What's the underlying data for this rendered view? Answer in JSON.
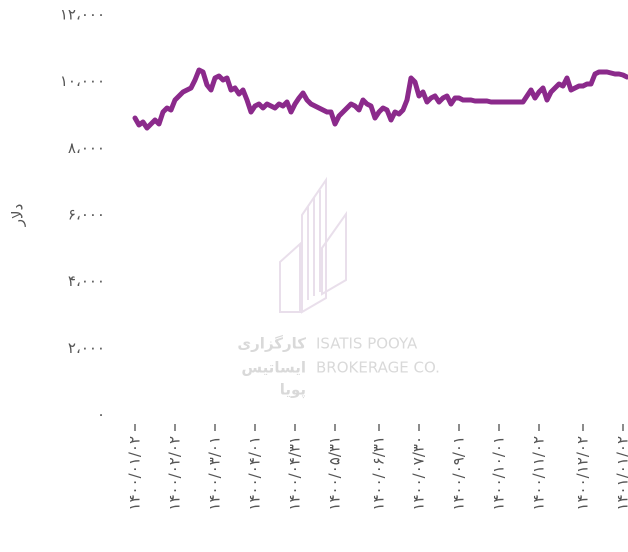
{
  "chart_data": {
    "type": "line",
    "ylabel": "دلار",
    "watermark": [
      "کارگزاری",
      "ایساتیس",
      "پویا",
      "ISATIS POOYA",
      "BROKERAGE CO."
    ],
    "ylim": [
      0,
      12000
    ],
    "yticks": [
      {
        "value": 0,
        "label": "۰"
      },
      {
        "value": 2000,
        "label": "۲،۰۰۰"
      },
      {
        "value": 4000,
        "label": "۴،۰۰۰"
      },
      {
        "value": 6000,
        "label": "۶،۰۰۰"
      },
      {
        "value": 8000,
        "label": "۸،۰۰۰"
      },
      {
        "value": 10000,
        "label": "۱۰،۰۰۰"
      },
      {
        "value": 12000,
        "label": "۱۲،۰۰۰"
      }
    ],
    "categories": [
      "۱۴۰۰/۰۱/۰۲",
      null,
      null,
      null,
      null,
      null,
      null,
      null,
      null,
      null,
      "۱۴۰۰/۰۲/۰۲",
      null,
      null,
      null,
      null,
      null,
      null,
      null,
      null,
      null,
      "۱۴۰۰/۰۳/۰۱",
      null,
      null,
      null,
      null,
      null,
      null,
      null,
      null,
      null,
      "۱۴۰۰/۰۴/۰۱",
      null,
      null,
      null,
      null,
      null,
      null,
      null,
      null,
      null,
      "۱۴۰۰/۰۴/۳۱",
      null,
      null,
      null,
      null,
      null,
      null,
      null,
      null,
      null,
      "۱۴۰۰/۰۵/۳۱",
      null,
      null,
      null,
      null,
      null,
      null,
      null,
      null,
      null,
      null,
      "۱۴۰۰/۰۶/۳۱",
      null,
      null,
      null,
      null,
      null,
      null,
      null,
      null,
      null,
      "۱۴۰۰/۰۷/۳۰",
      null,
      null,
      null,
      null,
      null,
      null,
      null,
      null,
      null,
      "۱۴۰۰/۰۹/۰۱",
      null,
      null,
      null,
      null,
      null,
      null,
      null,
      null,
      null,
      "۱۴۰۰/۱۰/۰۱",
      null,
      null,
      null,
      null,
      null,
      null,
      null,
      null,
      null,
      "۱۴۰۰/۱۱/۰۲",
      null,
      null,
      null,
      null,
      null,
      null,
      null,
      null,
      null,
      null,
      "۱۴۰۰/۱۲/۰۲",
      null,
      null,
      null,
      null,
      null,
      null,
      null,
      null,
      null,
      "۱۴۰۱/۰۱/۰۲",
      null
    ],
    "series": [
      {
        "color": "#8b2a8b",
        "values": [
          8910,
          8700,
          8790,
          8610,
          8730,
          8850,
          8730,
          9090,
          9210,
          9150,
          9450,
          9570,
          9690,
          9750,
          9810,
          10050,
          10350,
          10290,
          9900,
          9750,
          10110,
          10170,
          10050,
          10110,
          9750,
          9810,
          9630,
          9750,
          9450,
          9090,
          9270,
          9330,
          9210,
          9330,
          9270,
          9210,
          9330,
          9270,
          9390,
          9090,
          9330,
          9510,
          9660,
          9450,
          9330,
          9270,
          9210,
          9150,
          9090,
          9090,
          8730,
          8970,
          9090,
          9210,
          9330,
          9270,
          9150,
          9450,
          9330,
          9270,
          8910,
          9090,
          9210,
          9150,
          8850,
          9090,
          9030,
          9150,
          9450,
          10110,
          9990,
          9570,
          9690,
          9390,
          9510,
          9570,
          9390,
          9510,
          9570,
          9330,
          9510,
          9510,
          9450,
          9450,
          9450,
          9420,
          9420,
          9420,
          9420,
          9390,
          9390,
          9390,
          9390,
          9390,
          9390,
          9390,
          9390,
          9390,
          9570,
          9750,
          9510,
          9690,
          9810,
          9450,
          9690,
          9810,
          9930,
          9870,
          10110,
          9750,
          9810,
          9870,
          9870,
          9930,
          9930,
          10230,
          10290,
          10290,
          10290,
          10260,
          10230,
          10230,
          10200,
          10140
        ]
      }
    ]
  }
}
